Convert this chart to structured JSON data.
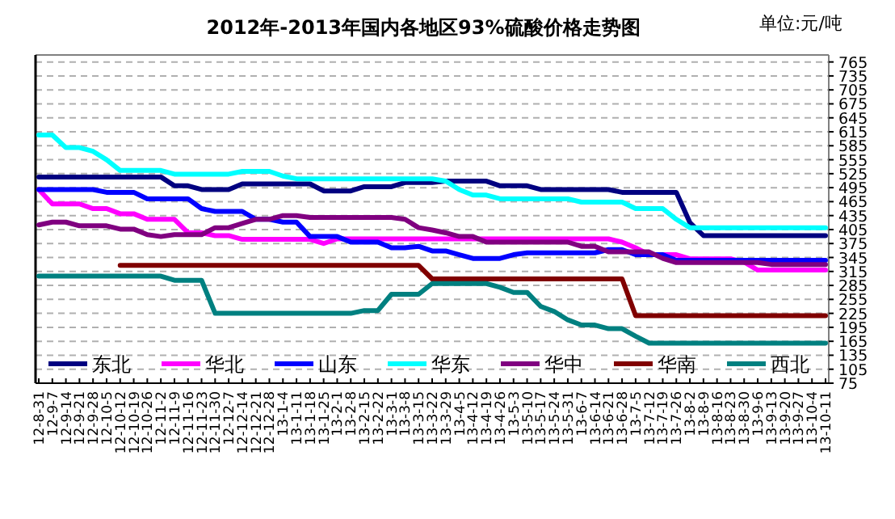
{
  "chart_data": {
    "type": "line",
    "title": "2012年-2013年国内各地区93%硫酸价格走势图",
    "annotations": [
      "单位:元/吨"
    ],
    "categories": [
      "12-8-31",
      "12-9-7",
      "12-9-14",
      "12-9-21",
      "12-9-28",
      "12-10-5",
      "12-10-12",
      "12-10-19",
      "12-10-26",
      "12-11-2",
      "12-11-9",
      "12-11-16",
      "12-11-23",
      "12-11-30",
      "12-12-7",
      "12-12-14",
      "12-12-21",
      "12-12-28",
      "13-1-4",
      "13-1-11",
      "13-1-18",
      "13-1-25",
      "13-2-1",
      "13-2-8",
      "13-2-15",
      "13-2-22",
      "13-3-1",
      "13-3-8",
      "13-3-15",
      "13-3-22",
      "13-3-29",
      "13-4-5",
      "13-4-12",
      "13-4-19",
      "13-4-26",
      "13-5-3",
      "13-5-10",
      "13-5-17",
      "13-5-24",
      "13-5-31",
      "13-6-7",
      "13-6-14",
      "13-6-21",
      "13-6-28",
      "13-7-5",
      "13-7-12",
      "13-7-19",
      "13-7-26",
      "13-8-2",
      "13-8-9",
      "13-8-16",
      "13-8-23",
      "13-8-30",
      "13-9-6",
      "13-9-13",
      "13-9-20",
      "13-9-27",
      "13-10-4",
      "13-10-11"
    ],
    "series": [
      {
        "name": "东北",
        "color": "#000080",
        "values": [
          518,
          518,
          518,
          518,
          518,
          518,
          518,
          518,
          518,
          518,
          499,
          499,
          491,
          491,
          491,
          503,
          503,
          503,
          503,
          503,
          503,
          488,
          488,
          488,
          497,
          497,
          497,
          506,
          506,
          506,
          509,
          509,
          509,
          509,
          499,
          499,
          499,
          491,
          491,
          491,
          491,
          491,
          491,
          485,
          485,
          485,
          485,
          485,
          420,
          392,
          392,
          392,
          392,
          392,
          392,
          392,
          392,
          392,
          392
        ]
      },
      {
        "name": "华北",
        "color": "#ff00ff",
        "values": [
          491,
          460,
          460,
          460,
          450,
          450,
          439,
          439,
          427,
          427,
          427,
          398,
          398,
          392,
          392,
          384,
          384,
          384,
          384,
          384,
          384,
          375,
          385,
          385,
          385,
          385,
          385,
          385,
          385,
          385,
          385,
          385,
          385,
          385,
          385,
          385,
          385,
          385,
          385,
          385,
          385,
          385,
          385,
          378,
          366,
          351,
          351,
          351,
          342,
          342,
          342,
          342,
          335,
          318,
          318,
          318,
          318,
          318,
          318
        ]
      },
      {
        "name": "山东",
        "color": "#0000ff",
        "values": [
          491,
          491,
          491,
          491,
          491,
          485,
          485,
          485,
          471,
          471,
          471,
          471,
          450,
          444,
          444,
          444,
          427,
          427,
          421,
          421,
          390,
          390,
          390,
          378,
          378,
          378,
          366,
          366,
          369,
          359,
          359,
          351,
          343,
          343,
          343,
          351,
          355,
          355,
          355,
          355,
          355,
          355,
          362,
          362,
          351,
          351,
          351,
          339,
          339,
          339,
          339,
          339,
          339,
          339,
          339,
          339,
          339,
          339,
          339
        ]
      },
      {
        "name": "华东",
        "color": "#00ffff",
        "values": [
          608,
          608,
          581,
          581,
          573,
          555,
          532,
          532,
          532,
          532,
          524,
          524,
          524,
          524,
          524,
          530,
          530,
          530,
          520,
          514,
          514,
          514,
          514,
          514,
          514,
          514,
          514,
          514,
          514,
          514,
          509,
          491,
          479,
          479,
          471,
          471,
          471,
          471,
          471,
          471,
          464,
          464,
          464,
          464,
          450,
          450,
          450,
          427,
          409,
          409,
          409,
          409,
          409,
          409,
          409,
          409,
          409,
          409,
          409
        ]
      },
      {
        "name": "华中",
        "color": "#800080",
        "values": [
          415,
          421,
          421,
          413,
          413,
          413,
          406,
          406,
          394,
          390,
          394,
          394,
          394,
          409,
          409,
          418,
          427,
          427,
          435,
          435,
          431,
          431,
          431,
          431,
          431,
          431,
          431,
          427,
          409,
          404,
          398,
          390,
          390,
          378,
          378,
          378,
          378,
          378,
          378,
          378,
          369,
          369,
          357,
          357,
          357,
          357,
          343,
          334,
          334,
          334,
          334,
          334,
          334,
          334,
          330,
          330,
          330,
          330,
          330
        ]
      },
      {
        "name": "华南",
        "color": "#800000",
        "values": [
          null,
          null,
          null,
          null,
          null,
          null,
          328,
          328,
          328,
          328,
          328,
          328,
          328,
          328,
          328,
          328,
          328,
          328,
          328,
          328,
          328,
          328,
          328,
          328,
          328,
          328,
          328,
          328,
          328,
          299,
          299,
          299,
          299,
          299,
          299,
          299,
          299,
          299,
          299,
          299,
          299,
          299,
          299,
          299,
          220,
          220,
          220,
          220,
          220,
          220,
          220,
          220,
          220,
          220,
          220,
          220,
          220,
          220,
          220
        ]
      },
      {
        "name": "西北",
        "color": "#008080",
        "values": [
          305,
          305,
          305,
          305,
          305,
          305,
          305,
          305,
          305,
          305,
          296,
          296,
          296,
          225,
          225,
          225,
          225,
          225,
          225,
          225,
          225,
          225,
          225,
          225,
          231,
          231,
          266,
          266,
          266,
          289,
          289,
          289,
          289,
          289,
          281,
          270,
          270,
          240,
          229,
          211,
          200,
          200,
          192,
          192,
          176,
          161,
          161,
          161,
          161,
          161,
          161,
          161,
          161,
          161,
          161,
          161,
          161,
          161,
          161
        ]
      }
    ],
    "ylim": [
      75,
      780
    ],
    "yticks": [
      75,
      105,
      135,
      165,
      195,
      225,
      255,
      285,
      315,
      345,
      375,
      405,
      435,
      465,
      495,
      525,
      555,
      585,
      615,
      645,
      675,
      705,
      735,
      765
    ],
    "grid": "y",
    "legend": "bottom"
  }
}
